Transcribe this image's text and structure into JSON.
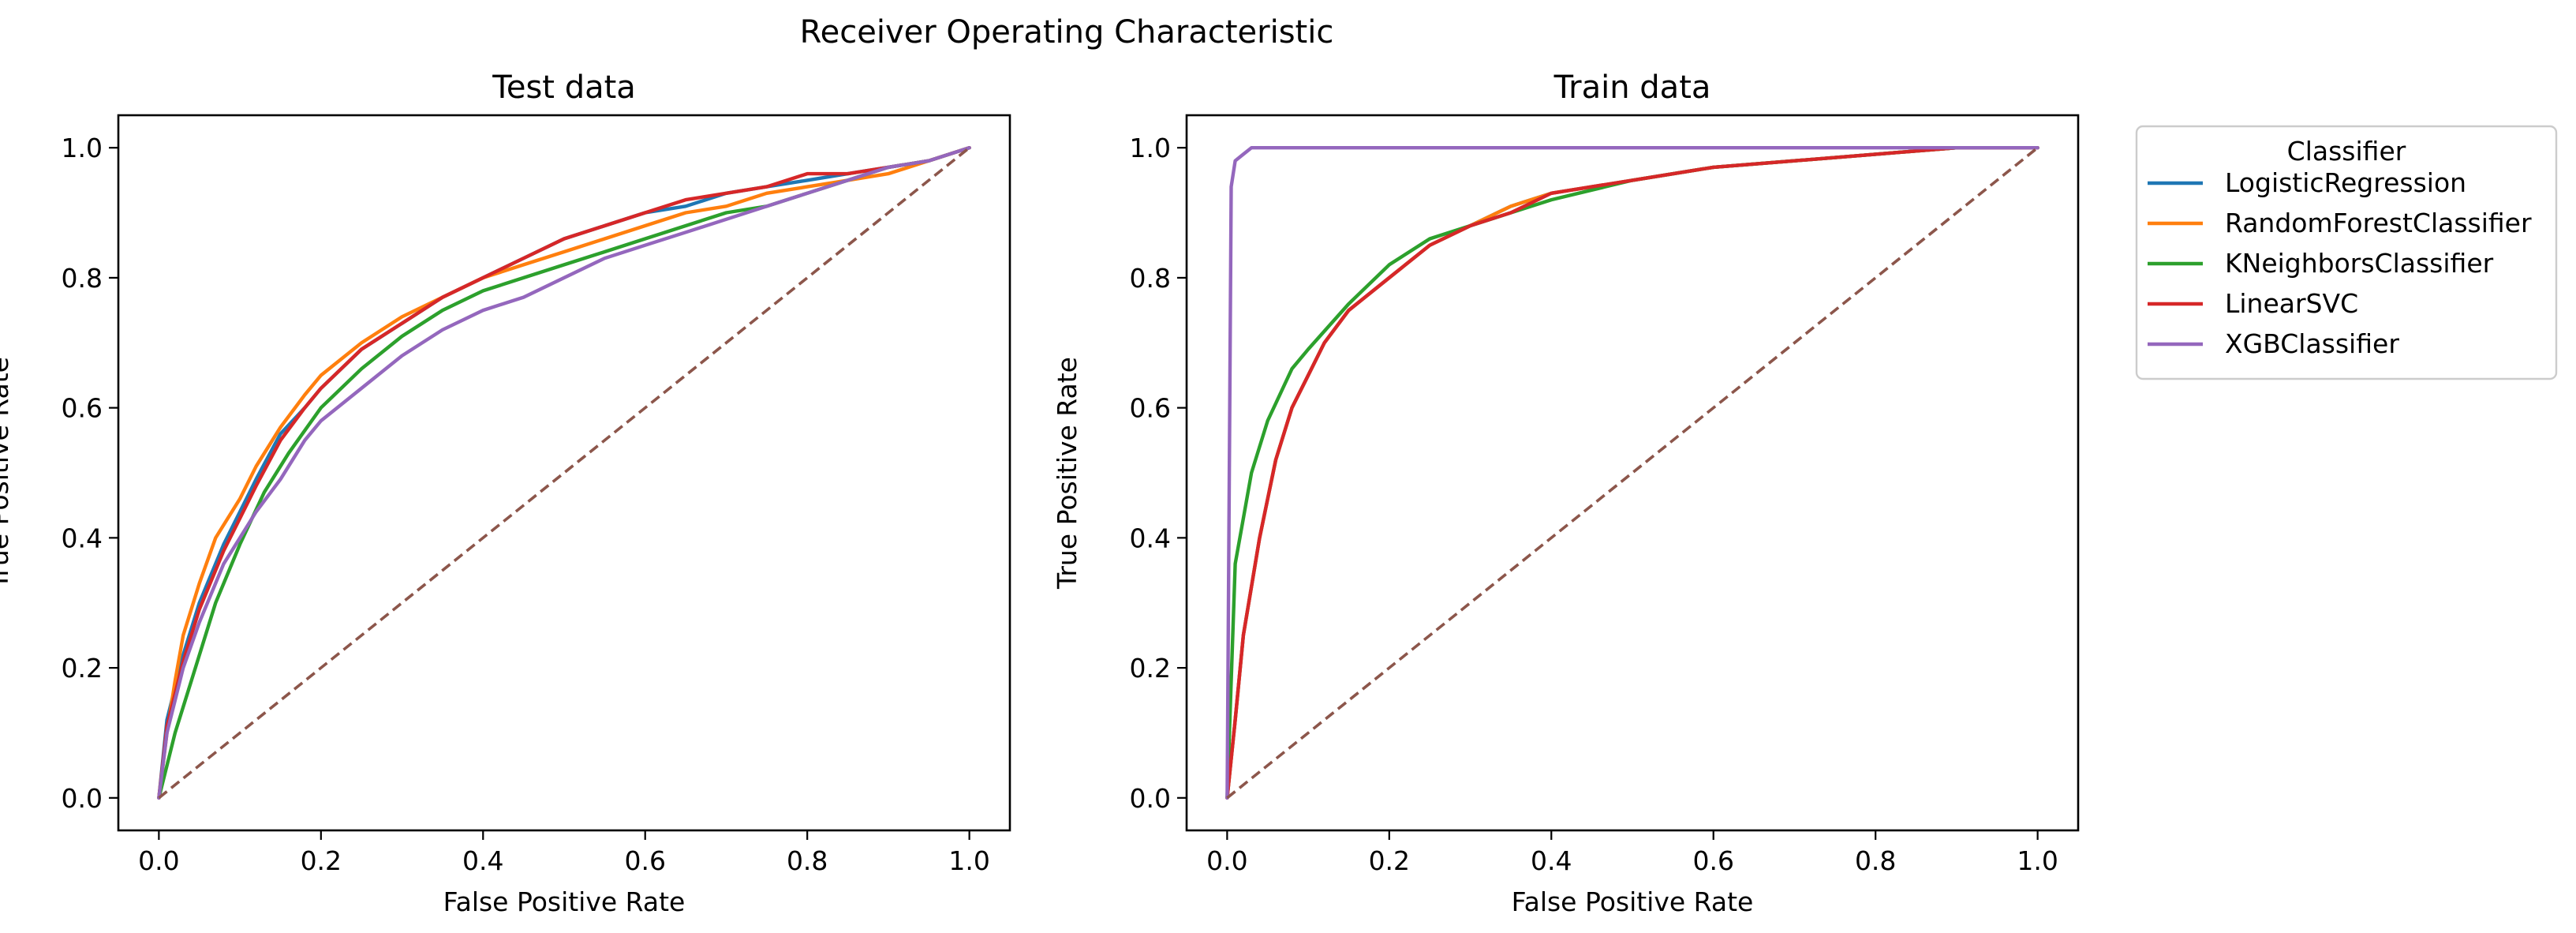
{
  "figure": {
    "suptitle": "Receiver Operating Characteristic"
  },
  "legend": {
    "title": "Classifier",
    "placement": "outside-right-top",
    "entries": [
      {
        "name": "LogisticRegression",
        "color": "#1f77b4"
      },
      {
        "name": "RandomForestClassifier",
        "color": "#ff7f0e"
      },
      {
        "name": "KNeighborsClassifier",
        "color": "#2ca02c"
      },
      {
        "name": "LinearSVC",
        "color": "#d62728"
      },
      {
        "name": "XGBClassifier",
        "color": "#9467bd"
      }
    ]
  },
  "chart_data": [
    {
      "type": "line",
      "title": "Test data",
      "xlabel": "False Positive Rate",
      "ylabel": "True Positive Rate",
      "xlim": [
        -0.05,
        1.05
      ],
      "ylim": [
        -0.05,
        1.05
      ],
      "xticks": [
        0.0,
        0.2,
        0.4,
        0.6,
        0.8,
        1.0
      ],
      "yticks": [
        0.0,
        0.2,
        0.4,
        0.6,
        0.8,
        1.0
      ],
      "xtick_labels": [
        "0.0",
        "0.2",
        "0.4",
        "0.6",
        "0.8",
        "1.0"
      ],
      "ytick_labels": [
        "0.0",
        "0.2",
        "0.4",
        "0.6",
        "0.8",
        "1.0"
      ],
      "grid": false,
      "series": [
        {
          "name": "LogisticRegression",
          "color": "#1f77b4",
          "dashed": false,
          "x": [
            0,
            0.01,
            0.03,
            0.05,
            0.08,
            0.1,
            0.12,
            0.15,
            0.18,
            0.2,
            0.25,
            0.3,
            0.35,
            0.4,
            0.45,
            0.5,
            0.55,
            0.6,
            0.65,
            0.7,
            0.75,
            0.8,
            0.85,
            0.9,
            0.95,
            1
          ],
          "y": [
            0,
            0.12,
            0.22,
            0.3,
            0.39,
            0.44,
            0.49,
            0.56,
            0.6,
            0.63,
            0.69,
            0.73,
            0.77,
            0.8,
            0.83,
            0.86,
            0.88,
            0.9,
            0.91,
            0.93,
            0.94,
            0.95,
            0.96,
            0.97,
            0.98,
            1
          ]
        },
        {
          "name": "RandomForestClassifier",
          "color": "#ff7f0e",
          "dashed": false,
          "x": [
            0,
            0.01,
            0.02,
            0.03,
            0.05,
            0.07,
            0.1,
            0.12,
            0.15,
            0.18,
            0.2,
            0.25,
            0.3,
            0.35,
            0.4,
            0.45,
            0.5,
            0.55,
            0.6,
            0.65,
            0.7,
            0.75,
            0.8,
            0.85,
            0.9,
            0.95,
            1
          ],
          "y": [
            0,
            0.1,
            0.18,
            0.25,
            0.33,
            0.4,
            0.46,
            0.51,
            0.57,
            0.62,
            0.65,
            0.7,
            0.74,
            0.77,
            0.8,
            0.82,
            0.84,
            0.86,
            0.88,
            0.9,
            0.91,
            0.93,
            0.94,
            0.95,
            0.96,
            0.98,
            1
          ]
        },
        {
          "name": "KNeighborsClassifier",
          "color": "#2ca02c",
          "dashed": false,
          "x": [
            0,
            0.02,
            0.04,
            0.07,
            0.1,
            0.13,
            0.16,
            0.2,
            0.25,
            0.3,
            0.35,
            0.4,
            0.45,
            0.5,
            0.55,
            0.6,
            0.65,
            0.7,
            0.75,
            0.8,
            0.85,
            0.9,
            0.95,
            1
          ],
          "y": [
            0,
            0.1,
            0.18,
            0.3,
            0.39,
            0.47,
            0.53,
            0.6,
            0.66,
            0.71,
            0.75,
            0.78,
            0.8,
            0.82,
            0.84,
            0.86,
            0.88,
            0.9,
            0.91,
            0.93,
            0.95,
            0.97,
            0.98,
            1
          ]
        },
        {
          "name": "LinearSVC",
          "color": "#d62728",
          "dashed": false,
          "x": [
            0,
            0.01,
            0.03,
            0.05,
            0.08,
            0.1,
            0.12,
            0.15,
            0.18,
            0.2,
            0.25,
            0.3,
            0.35,
            0.4,
            0.45,
            0.5,
            0.55,
            0.6,
            0.65,
            0.7,
            0.75,
            0.8,
            0.85,
            0.9,
            0.95,
            1
          ],
          "y": [
            0,
            0.11,
            0.21,
            0.29,
            0.38,
            0.43,
            0.48,
            0.55,
            0.6,
            0.63,
            0.69,
            0.73,
            0.77,
            0.8,
            0.83,
            0.86,
            0.88,
            0.9,
            0.92,
            0.93,
            0.94,
            0.96,
            0.96,
            0.97,
            0.98,
            1
          ]
        },
        {
          "name": "XGBClassifier",
          "color": "#9467bd",
          "dashed": false,
          "x": [
            0,
            0.01,
            0.03,
            0.05,
            0.08,
            0.1,
            0.12,
            0.15,
            0.18,
            0.2,
            0.25,
            0.3,
            0.35,
            0.4,
            0.45,
            0.5,
            0.55,
            0.6,
            0.65,
            0.7,
            0.75,
            0.8,
            0.85,
            0.9,
            0.95,
            1
          ],
          "y": [
            0,
            0.1,
            0.2,
            0.27,
            0.36,
            0.4,
            0.44,
            0.49,
            0.55,
            0.58,
            0.63,
            0.68,
            0.72,
            0.75,
            0.77,
            0.8,
            0.83,
            0.85,
            0.87,
            0.89,
            0.91,
            0.93,
            0.95,
            0.97,
            0.98,
            1
          ]
        },
        {
          "name": "",
          "color": "#8c564b",
          "dashed": true,
          "x": [
            0,
            1
          ],
          "y": [
            0,
            1
          ]
        }
      ]
    },
    {
      "type": "line",
      "title": "Train data",
      "xlabel": "False Positive Rate",
      "ylabel": "True Positive Rate",
      "xlim": [
        -0.05,
        1.05
      ],
      "ylim": [
        -0.05,
        1.05
      ],
      "xticks": [
        0.0,
        0.2,
        0.4,
        0.6,
        0.8,
        1.0
      ],
      "yticks": [
        0.0,
        0.2,
        0.4,
        0.6,
        0.8,
        1.0
      ],
      "xtick_labels": [
        "0.0",
        "0.2",
        "0.4",
        "0.6",
        "0.8",
        "1.0"
      ],
      "ytick_labels": [
        "0.0",
        "0.2",
        "0.4",
        "0.6",
        "0.8",
        "1.0"
      ],
      "grid": false,
      "series": [
        {
          "name": "LogisticRegression",
          "color": "#1f77b4",
          "dashed": false,
          "x": [
            0,
            0.01,
            0.02,
            0.04,
            0.06,
            0.08,
            0.1,
            0.12,
            0.15,
            0.2,
            0.25,
            0.3,
            0.35,
            0.4,
            0.5,
            0.6,
            0.7,
            0.8,
            0.9,
            1
          ],
          "y": [
            0,
            0.12,
            0.25,
            0.4,
            0.52,
            0.6,
            0.65,
            0.7,
            0.75,
            0.8,
            0.85,
            0.88,
            0.91,
            0.93,
            0.95,
            0.97,
            0.98,
            0.99,
            1,
            1
          ]
        },
        {
          "name": "RandomForestClassifier",
          "color": "#ff7f0e",
          "dashed": false,
          "x": [
            0,
            0.01,
            0.02,
            0.04,
            0.06,
            0.08,
            0.1,
            0.12,
            0.15,
            0.2,
            0.25,
            0.3,
            0.35,
            0.4,
            0.5,
            0.6,
            0.7,
            0.8,
            0.9,
            1
          ],
          "y": [
            0,
            0.12,
            0.25,
            0.4,
            0.52,
            0.6,
            0.65,
            0.7,
            0.75,
            0.8,
            0.85,
            0.88,
            0.91,
            0.93,
            0.95,
            0.97,
            0.98,
            0.99,
            1,
            1
          ]
        },
        {
          "name": "KNeighborsClassifier",
          "color": "#2ca02c",
          "dashed": false,
          "x": [
            0,
            0.01,
            0.02,
            0.03,
            0.05,
            0.08,
            0.1,
            0.15,
            0.2,
            0.25,
            0.3,
            0.4,
            0.5,
            0.6,
            0.7,
            0.8,
            0.9,
            1
          ],
          "y": [
            0,
            0.36,
            0.43,
            0.5,
            0.58,
            0.66,
            0.69,
            0.76,
            0.82,
            0.86,
            0.88,
            0.92,
            0.95,
            0.97,
            0.98,
            0.99,
            1,
            1
          ]
        },
        {
          "name": "LinearSVC",
          "color": "#d62728",
          "dashed": false,
          "x": [
            0,
            0.01,
            0.02,
            0.04,
            0.06,
            0.08,
            0.1,
            0.12,
            0.15,
            0.2,
            0.25,
            0.3,
            0.35,
            0.4,
            0.5,
            0.6,
            0.7,
            0.8,
            0.9,
            1
          ],
          "y": [
            0,
            0.12,
            0.25,
            0.4,
            0.52,
            0.6,
            0.65,
            0.7,
            0.75,
            0.8,
            0.85,
            0.88,
            0.9,
            0.93,
            0.95,
            0.97,
            0.98,
            0.99,
            1,
            1
          ]
        },
        {
          "name": "XGBClassifier",
          "color": "#9467bd",
          "dashed": false,
          "x": [
            0,
            0.005,
            0.01,
            0.02,
            0.03,
            0.05,
            0.1,
            0.5,
            1
          ],
          "y": [
            0,
            0.94,
            0.98,
            0.99,
            1,
            1,
            1,
            1,
            1
          ]
        },
        {
          "name": "",
          "color": "#8c564b",
          "dashed": true,
          "x": [
            0,
            1
          ],
          "y": [
            0,
            1
          ]
        }
      ]
    }
  ]
}
